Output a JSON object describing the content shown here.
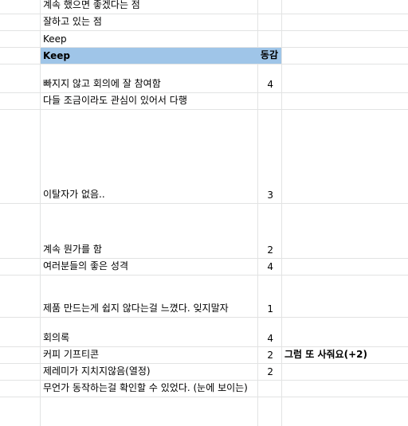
{
  "rows": [
    {
      "a": "계속 했으면 좋겠다는 점",
      "b": "",
      "c": ""
    },
    {
      "a": "잘하고 있는 점",
      "b": "",
      "c": ""
    },
    {
      "a": "Keep",
      "b": "동감",
      "c": ""
    },
    {
      "a": "빠지지 않고 회의에 잘 참여함",
      "b": "4",
      "c": ""
    },
    {
      "a": "다들 조금이라도 관심이 있어서 다행",
      "b": "",
      "c": ""
    },
    {
      "a": "이탈자가 없음..",
      "b": "3",
      "c": ""
    },
    {
      "a": "계속 뭔가를 함",
      "b": "2",
      "c": ""
    },
    {
      "a": "여러분들의 좋은 성격",
      "b": "4",
      "c": ""
    },
    {
      "a": "제품 만드는게 쉽지 않다는걸 느꼈다. 잊지말자",
      "b": "1",
      "c": ""
    },
    {
      "a": "회의록",
      "b": "4",
      "c": ""
    },
    {
      "a": "커피 기프티콘",
      "b": "2",
      "c": "그럼 또 사줘요(+2)"
    },
    {
      "a": "제레미가 지치지않음(열정)",
      "b": "2",
      "c": ""
    },
    {
      "a": "무언가 동작하는걸 확인할 수 있었다. (눈에 보이는)",
      "b": "",
      "c": ""
    }
  ]
}
